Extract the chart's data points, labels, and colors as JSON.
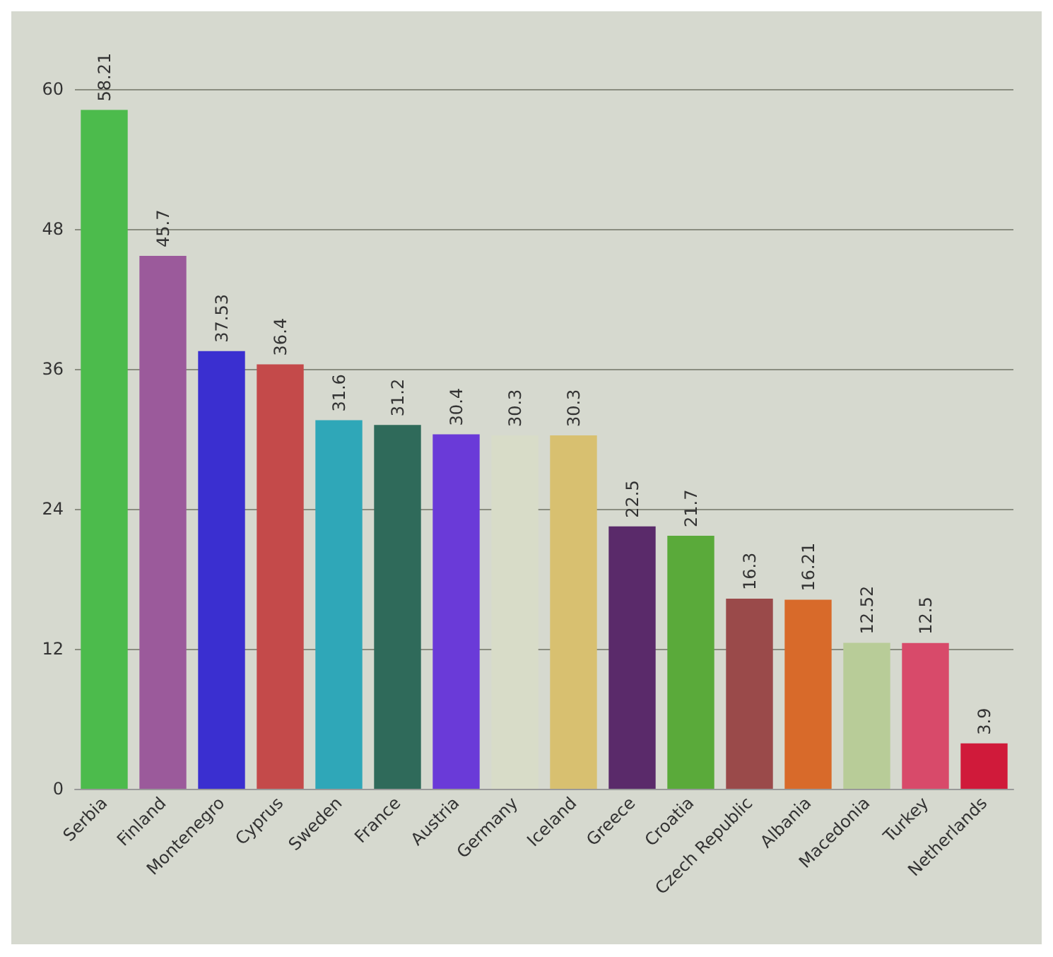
{
  "chart_data": {
    "type": "bar",
    "categories": [
      "Serbia",
      "Finland",
      "Montenegro",
      "Cyprus",
      "Sweden",
      "France",
      "Austria",
      "Germany",
      "Iceland",
      "Greece",
      "Croatia",
      "Czech Republic",
      "Albania",
      "Macedonia",
      "Turkey",
      "Netherlands"
    ],
    "values": [
      58.21,
      45.7,
      37.53,
      36.4,
      31.6,
      31.2,
      30.4,
      30.3,
      30.3,
      22.5,
      21.7,
      16.3,
      16.21,
      12.52,
      12.5,
      3.9
    ],
    "colors": [
      "#4cbb4c",
      "#9b5a9b",
      "#3a2fd0",
      "#c44a4a",
      "#2fa7b8",
      "#2f6a5a",
      "#6a3ad8",
      "#d8dcc8",
      "#d8c070",
      "#5a2a6a",
      "#5aaa3a",
      "#9a4a4a",
      "#d86a2a",
      "#b8cc98",
      "#d84a6a",
      "#d01a3a"
    ],
    "ylim": [
      0,
      60
    ],
    "yticks": [
      0,
      12,
      24,
      36,
      48,
      60
    ],
    "grid": "y",
    "data_labels": true
  }
}
